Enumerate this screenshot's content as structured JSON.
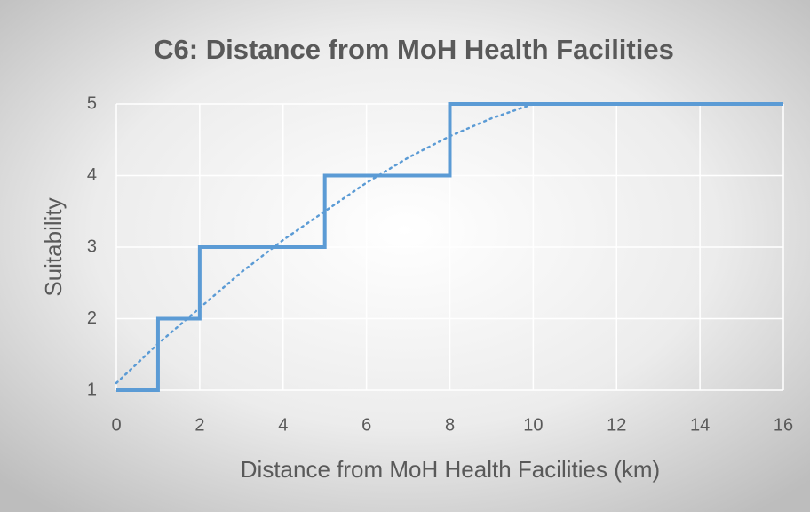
{
  "chart_data": {
    "type": "line",
    "title": "C6: Distance from MoH Health Facilities",
    "xlabel": "Distance from MoH Health Facilities (km)",
    "ylabel": "Suitability",
    "xlim": [
      0,
      16
    ],
    "ylim": [
      1,
      5
    ],
    "xticks": [
      0,
      2,
      4,
      6,
      8,
      10,
      12,
      14,
      16
    ],
    "yticks": [
      1,
      2,
      3,
      4,
      5
    ],
    "grid": true,
    "series": [
      {
        "color": "#5b9bd5",
        "line_style": "solid",
        "x": [
          0,
          1,
          1,
          2,
          2,
          5,
          5,
          8,
          8,
          16
        ],
        "values": [
          1,
          1,
          2,
          2,
          3,
          3,
          4,
          4,
          5,
          5
        ]
      },
      {
        "color": "#5b9bd5",
        "line_style": "dotted",
        "x": [
          0,
          1,
          2,
          3,
          4,
          5,
          6,
          7,
          8,
          9,
          10
        ],
        "values": [
          1.1,
          1.65,
          2.15,
          2.65,
          3.1,
          3.5,
          3.9,
          4.25,
          4.55,
          4.8,
          5.0
        ]
      }
    ]
  }
}
